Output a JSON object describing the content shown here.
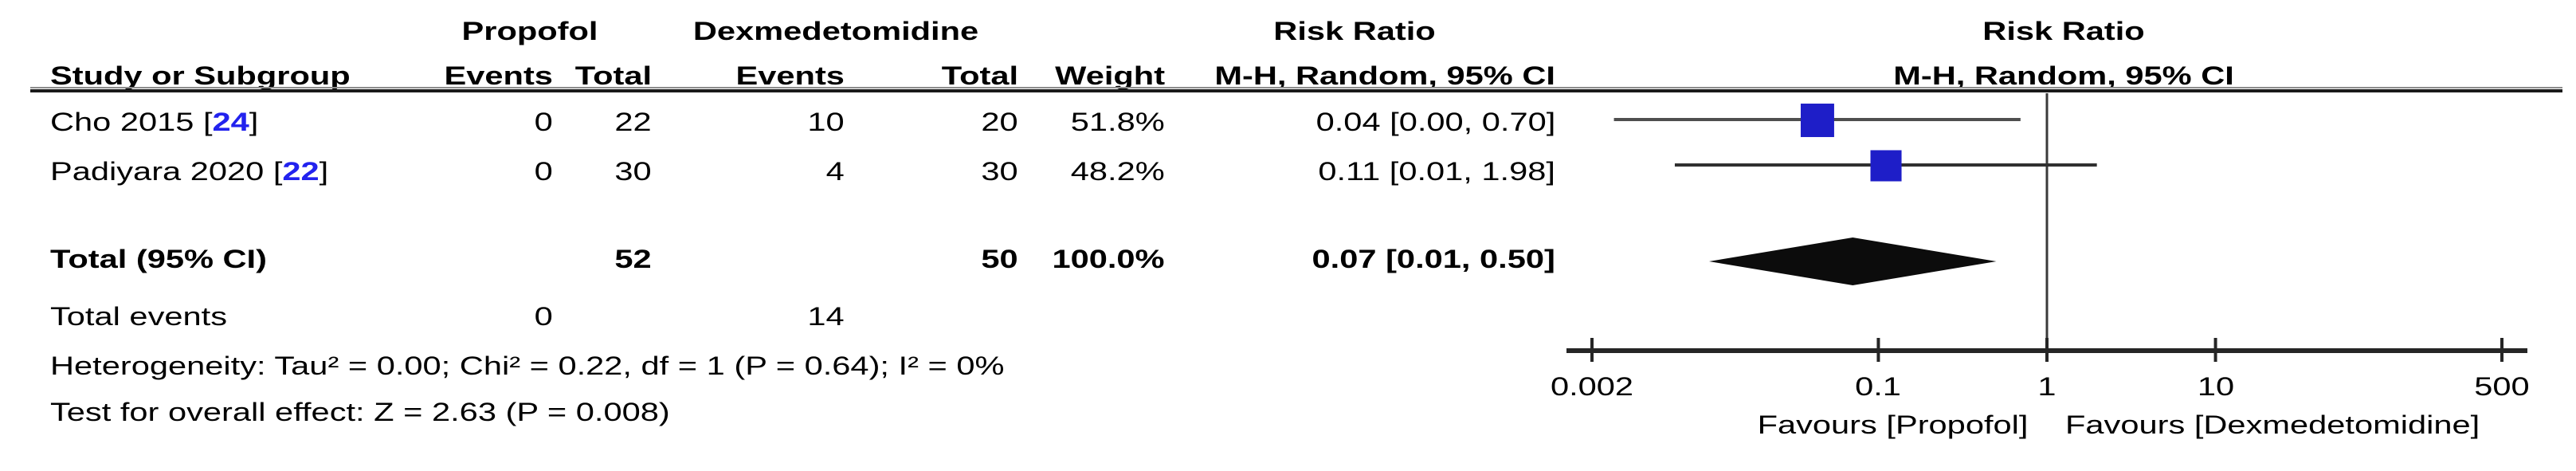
{
  "groups": {
    "experimental": "Propofol",
    "control": "Dexmedetomidine",
    "effect_measure": "Risk Ratio",
    "method": "M-H, Random, 95% CI"
  },
  "header": {
    "study": "Study or Subgroup",
    "events": "Events",
    "total": "Total",
    "weight": "Weight"
  },
  "table": {
    "rows": [
      {
        "label_pre": "Cho 2015 [",
        "ref": "24",
        "label_post": "]",
        "e1": "0",
        "t1": "22",
        "e2": "10",
        "t2": "20",
        "weight": "51.8%",
        "ci": "0.04 [0.00, 0.70]"
      },
      {
        "label_pre": "Padiyara 2020 [",
        "ref": "22",
        "label_post": "]",
        "e1": "0",
        "t1": "30",
        "e2": "4",
        "t2": "30",
        "weight": "48.2%",
        "ci": "0.11 [0.01, 1.98]"
      }
    ],
    "total": {
      "label": "Total (95% CI)",
      "t1": "52",
      "t2": "50",
      "weight": "100.0%",
      "ci": "0.07 [0.01, 0.50]"
    },
    "total_events": {
      "label": "Total events",
      "e1": "0",
      "e2": "14"
    },
    "heterogeneity": "Heterogeneity: Tau² = 0.00; Chi² = 0.22, df = 1 (P = 0.64); I² = 0%",
    "overall_effect": "Test for overall effect: Z = 2.63 (P = 0.008)"
  },
  "chart_data": {
    "type": "forest",
    "effect_measure": "Risk Ratio",
    "model": "M-H, Random, 95% CI",
    "x_scale": "log",
    "axis": {
      "min": 0.002,
      "max": 500,
      "ticks": [
        0.002,
        0.1,
        1,
        10,
        500
      ],
      "tick_labels": [
        "0.002",
        "0.1",
        "1",
        "10",
        "500"
      ],
      "null_line": 1
    },
    "studies": [
      {
        "name": "Cho 2015",
        "ref": "24",
        "events_propofol": 0,
        "total_propofol": 22,
        "events_dexmedetomidine": 10,
        "total_dexmedetomidine": 20,
        "weight_pct": 51.8,
        "rr": 0.04,
        "ci_low": 0.0,
        "ci_high": 0.7,
        "plot": {
          "est": 0.0435,
          "lo": 0.0027,
          "hi": 0.697
        }
      },
      {
        "name": "Padiyara 2020",
        "ref": "22",
        "events_propofol": 0,
        "total_propofol": 30,
        "events_dexmedetomidine": 4,
        "total_dexmedetomidine": 30,
        "weight_pct": 48.2,
        "rr": 0.11,
        "ci_low": 0.01,
        "ci_high": 1.98,
        "plot": {
          "est": 0.111,
          "lo": 0.0062,
          "hi": 1.978
        }
      }
    ],
    "overall": {
      "label": "Total (95% CI)",
      "rr": 0.07,
      "ci_low": 0.01,
      "ci_high": 0.5,
      "weight_pct": 100.0,
      "plot": {
        "est": 0.0705,
        "lo": 0.0099,
        "hi": 0.501
      }
    },
    "favours_left": "Favours [Propofol]",
    "favours_right": "Favours [Dexmedetomidine]",
    "marker_color": "#1E1EC8",
    "diamond_color": "#0c0c0c",
    "line_color": "#3a3a3a"
  }
}
